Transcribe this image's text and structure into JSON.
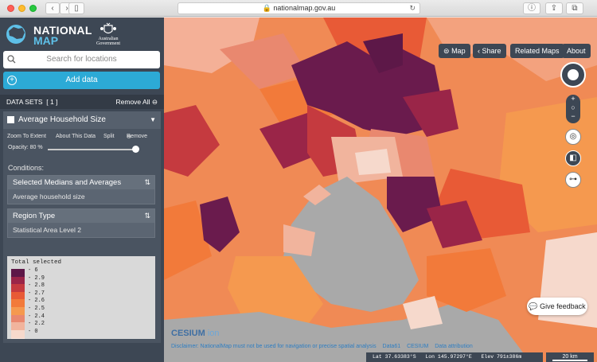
{
  "browser": {
    "url": "nationalmap.gov.au"
  },
  "branding": {
    "national": "NATIONAL",
    "map": "MAP",
    "government": "Australian Government"
  },
  "search": {
    "placeholder": "Search for locations"
  },
  "add_data_label": "Add data",
  "datasets": {
    "header": "DATA SETS",
    "count": "[ 1 ]",
    "remove_all": "Remove All"
  },
  "layer": {
    "name": "Average Household Size",
    "actions": {
      "zoom": "Zoom To Extent",
      "about": "About This Data",
      "split": "Split",
      "remove": "Remove"
    },
    "opacity_label": "Opacity: 80 %",
    "opacity": 0.8,
    "conditions_label": "Conditions:",
    "conditions": [
      {
        "title": "Selected Medians and Averages",
        "value": "Average household size"
      },
      {
        "title": "Region Type",
        "value": "Statistical Area Level 2"
      }
    ],
    "legend": {
      "title": "Total selected",
      "items": [
        {
          "label": "6",
          "color": "#5d1848"
        },
        {
          "label": "2.9",
          "color": "#9a2548"
        },
        {
          "label": "2.8",
          "color": "#c53a3f"
        },
        {
          "label": "2.7",
          "color": "#e85a36"
        },
        {
          "label": "2.6",
          "color": "#f27a3a"
        },
        {
          "label": "2.5",
          "color": "#f5994f"
        },
        {
          "label": "2.4",
          "color": "#e9886f"
        },
        {
          "label": "2.2",
          "color": "#f1b49d"
        },
        {
          "label": "0",
          "color": "#f6d9cc"
        }
      ]
    }
  },
  "map_controls": {
    "map": "Map",
    "share": "Share",
    "related": "Related Maps",
    "about": "About",
    "feedback": "Give feedback"
  },
  "footer": {
    "cesium": "CESIUM",
    "ion": "ion",
    "disclaimer": "Disclaimer: NationalMap must not be used for navigation or precise spatial analysis",
    "data61": "Data61",
    "cesium_attr": "CESIUM",
    "data_attr": "Data attribution",
    "lat": "Lat  37.63383°S",
    "lon": "Lon  145.97297°E",
    "elev": "Elev  791±386m",
    "scale": "20 km"
  }
}
